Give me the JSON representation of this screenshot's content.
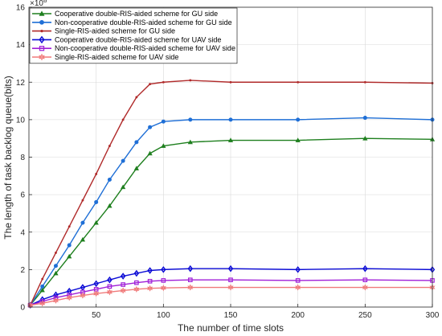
{
  "chart_data": {
    "type": "line",
    "title": "",
    "xlabel": "The number of time slots",
    "ylabel": "The length of task backlog queue(bits)",
    "xlim": [
      0,
      300
    ],
    "ylim": [
      0,
      16
    ],
    "y_multiplier_label": "×10",
    "y_multiplier_exponent": "8",
    "xticks": [
      50,
      100,
      150,
      200,
      250,
      300
    ],
    "yticks": [
      0,
      2,
      4,
      6,
      8,
      10,
      12,
      14,
      16
    ],
    "grid": true,
    "legend_position": "top-left",
    "x_points": [
      1,
      10,
      20,
      30,
      40,
      50,
      60,
      70,
      80,
      90,
      100,
      120,
      150,
      200,
      250,
      300
    ],
    "series": [
      {
        "name": "Cooperative double-RIS-aided scheme for GU side",
        "color": "#1e7f1e",
        "marker": "triangle",
        "values": [
          0.1,
          0.9,
          1.8,
          2.7,
          3.6,
          4.5,
          5.4,
          6.4,
          7.4,
          8.2,
          8.6,
          8.8,
          8.9,
          8.9,
          9.0,
          8.95
        ]
      },
      {
        "name": "Non-cooperative double-RIS-aided scheme for GU side",
        "color": "#1f6fd6",
        "marker": "circle",
        "values": [
          0.1,
          1.1,
          2.2,
          3.3,
          4.5,
          5.6,
          6.8,
          7.8,
          8.8,
          9.6,
          9.9,
          10.0,
          10.0,
          10.0,
          10.1,
          10.0
        ]
      },
      {
        "name": "Single-RIS-aided scheme for GU side",
        "color": "#b02a2a",
        "marker": "dot",
        "values": [
          0.1,
          1.5,
          2.9,
          4.3,
          5.7,
          7.1,
          8.6,
          10.0,
          11.2,
          11.9,
          12.0,
          12.1,
          12.0,
          12.0,
          12.0,
          11.95
        ]
      },
      {
        "name": "Cooperative double-RIS-aided scheme for UAV side",
        "color": "#0b0bd6",
        "marker": "diamond",
        "values": [
          0.1,
          0.4,
          0.65,
          0.85,
          1.05,
          1.25,
          1.45,
          1.65,
          1.8,
          1.95,
          2.0,
          2.05,
          2.05,
          2.0,
          2.05,
          2.0
        ]
      },
      {
        "name": "Non-cooperative double-RIS-aided scheme for UAV side",
        "color": "#a01fd8",
        "marker": "square",
        "values": [
          0.1,
          0.3,
          0.5,
          0.65,
          0.8,
          0.95,
          1.1,
          1.2,
          1.3,
          1.38,
          1.42,
          1.45,
          1.45,
          1.42,
          1.45,
          1.42
        ]
      },
      {
        "name": "Single-RIS-aided scheme for UAV side",
        "color": "#f07a7a",
        "marker": "hexagram",
        "values": [
          0.1,
          0.2,
          0.35,
          0.5,
          0.62,
          0.72,
          0.8,
          0.88,
          0.95,
          1.0,
          1.02,
          1.05,
          1.05,
          1.05,
          1.05,
          1.05
        ]
      }
    ]
  }
}
